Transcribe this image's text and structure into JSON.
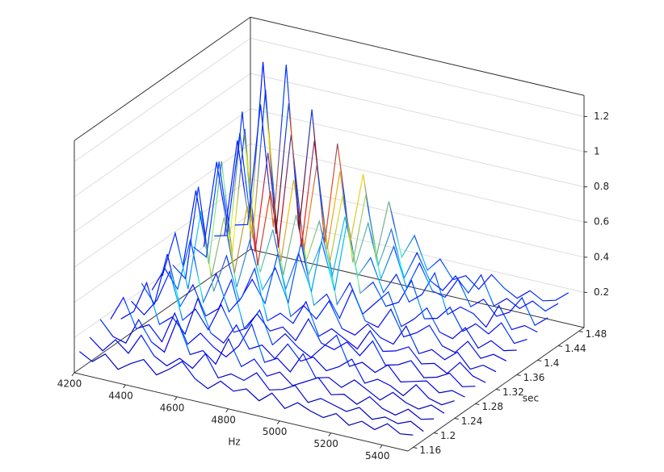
{
  "chart_data": {
    "type": "waterfall3d",
    "xlabel": "Hz",
    "ylabel": "sec",
    "xlim": [
      4200,
      5500
    ],
    "ylim": [
      1.15,
      1.49
    ],
    "zlim": [
      0,
      1.32
    ],
    "xticks": [
      4200,
      4400,
      4600,
      4800,
      5000,
      5200,
      5400
    ],
    "yticks": [
      1.16,
      1.2,
      1.24,
      1.28,
      1.32,
      1.36,
      1.4,
      1.44,
      1.48
    ],
    "zticks": [
      0.2,
      0.4,
      0.6,
      0.8,
      1,
      1.2
    ],
    "colormap": "jet",
    "clim": [
      0,
      1.2
    ],
    "grid": true,
    "x": [
      4200,
      4250,
      4300,
      4350,
      4400,
      4450,
      4500,
      4550,
      4600,
      4650,
      4700,
      4750,
      4800,
      4850,
      4900,
      4950,
      5000,
      5050,
      5100,
      5150,
      5200,
      5250,
      5300,
      5350,
      5400,
      5450,
      5500
    ],
    "series": [
      {
        "time": 1.16,
        "values": [
          0.1,
          0.06,
          0.12,
          0.05,
          0.1,
          0.14,
          0.07,
          0.12,
          0.18,
          0.1,
          0.06,
          0.12,
          0.08,
          0.11,
          0.06,
          0.12,
          0.05,
          0.1,
          0.07,
          0.05,
          0.09,
          0.04,
          0.08,
          0.05,
          0.1,
          0.06,
          0.07
        ]
      },
      {
        "time": 1.18,
        "values": [
          0.14,
          0.08,
          0.16,
          0.1,
          0.22,
          0.12,
          0.08,
          0.14,
          0.1,
          0.2,
          0.08,
          0.12,
          0.1,
          0.16,
          0.08,
          0.1,
          0.14,
          0.06,
          0.1,
          0.08,
          0.06,
          0.1,
          0.05,
          0.08,
          0.06,
          0.09,
          0.05
        ]
      },
      {
        "time": 1.2,
        "values": [
          0.2,
          0.12,
          0.1,
          0.25,
          0.14,
          0.1,
          0.3,
          0.12,
          0.16,
          0.1,
          0.26,
          0.12,
          0.18,
          0.1,
          0.14,
          0.08,
          0.12,
          0.16,
          0.08,
          0.1,
          0.06,
          0.12,
          0.07,
          0.05,
          0.1,
          0.06,
          0.08
        ]
      },
      {
        "time": 1.22,
        "values": [
          0.16,
          0.3,
          0.14,
          0.18,
          0.1,
          0.28,
          0.12,
          0.2,
          0.14,
          0.1,
          0.18,
          0.32,
          0.12,
          0.16,
          0.1,
          0.22,
          0.1,
          0.12,
          0.08,
          0.14,
          0.1,
          0.06,
          0.12,
          0.08,
          0.06,
          0.1,
          0.07
        ]
      },
      {
        "time": 1.24,
        "values": [
          0.12,
          0.18,
          0.36,
          0.14,
          0.2,
          0.12,
          0.34,
          0.16,
          0.12,
          0.24,
          0.12,
          0.16,
          0.1,
          0.2,
          0.12,
          0.16,
          0.1,
          0.14,
          0.2,
          0.08,
          0.12,
          0.1,
          0.06,
          0.14,
          0.08,
          0.06,
          0.1
        ]
      },
      {
        "time": 1.26,
        "values": [
          0.18,
          0.12,
          0.22,
          0.4,
          0.14,
          0.22,
          0.12,
          0.28,
          0.14,
          0.18,
          0.3,
          0.12,
          0.2,
          0.14,
          0.1,
          0.18,
          0.26,
          0.1,
          0.14,
          0.1,
          0.16,
          0.08,
          0.1,
          0.12,
          0.07,
          0.1,
          0.08
        ]
      },
      {
        "time": 1.28,
        "values": [
          0.24,
          0.14,
          0.44,
          0.16,
          0.3,
          0.14,
          0.2,
          0.38,
          0.12,
          0.22,
          0.14,
          0.18,
          0.12,
          0.26,
          0.14,
          0.12,
          0.18,
          0.12,
          0.22,
          0.1,
          0.12,
          0.16,
          0.08,
          0.1,
          0.14,
          0.08,
          0.1
        ]
      },
      {
        "time": 1.3,
        "values": [
          0.16,
          0.3,
          0.2,
          0.5,
          0.16,
          0.34,
          0.14,
          0.24,
          0.42,
          0.14,
          0.2,
          0.16,
          0.3,
          0.12,
          0.18,
          0.14,
          0.1,
          0.22,
          0.12,
          0.14,
          0.18,
          0.1,
          0.12,
          0.08,
          0.16,
          0.1,
          0.08
        ]
      },
      {
        "time": 1.32,
        "values": [
          0.2,
          0.46,
          0.16,
          0.62,
          0.18,
          0.4,
          0.16,
          0.3,
          0.18,
          0.48,
          0.14,
          0.22,
          0.16,
          0.28,
          0.14,
          0.12,
          0.2,
          0.14,
          0.12,
          0.24,
          0.1,
          0.14,
          0.1,
          0.16,
          0.08,
          0.12,
          0.1
        ]
      },
      {
        "time": 1.34,
        "values": [
          0.22,
          0.16,
          0.7,
          0.2,
          0.56,
          0.18,
          0.46,
          0.2,
          0.34,
          0.16,
          0.52,
          0.18,
          0.26,
          0.14,
          0.32,
          0.16,
          0.14,
          0.26,
          0.12,
          0.16,
          0.22,
          0.12,
          0.1,
          0.18,
          0.1,
          0.14,
          0.12
        ]
      },
      {
        "time": 1.36,
        "values": [
          0.18,
          0.62,
          0.22,
          0.82,
          0.2,
          0.6,
          0.24,
          0.5,
          0.18,
          0.4,
          0.2,
          0.58,
          0.16,
          0.3,
          0.14,
          0.22,
          0.3,
          0.12,
          0.18,
          0.26,
          0.14,
          0.12,
          0.2,
          0.1,
          0.16,
          0.12,
          0.14
        ]
      },
      {
        "time": 1.38,
        "values": [
          0.24,
          0.2,
          0.76,
          0.24,
          0.98,
          0.22,
          0.66,
          0.2,
          0.56,
          0.24,
          0.44,
          0.18,
          0.6,
          0.2,
          0.28,
          0.16,
          0.2,
          0.34,
          0.14,
          0.16,
          0.24,
          0.12,
          0.18,
          0.14,
          0.22,
          0.12,
          0.16
        ]
      },
      {
        "time": 1.4,
        "values": [
          0.2,
          0.7,
          0.26,
          1.02,
          0.24,
          0.82,
          0.22,
          0.7,
          0.26,
          0.5,
          0.2,
          0.56,
          0.24,
          0.36,
          0.18,
          0.3,
          0.16,
          0.22,
          0.36,
          0.14,
          0.2,
          0.18,
          0.12,
          0.26,
          0.14,
          0.18,
          0.16
        ]
      },
      {
        "time": 1.42,
        "values": [
          0.22,
          0.24,
          0.84,
          0.26,
          1.12,
          0.24,
          0.9,
          0.26,
          0.76,
          0.22,
          0.62,
          0.24,
          0.5,
          0.2,
          0.4,
          0.18,
          0.34,
          0.2,
          0.18,
          0.3,
          0.16,
          0.22,
          0.14,
          0.18,
          0.28,
          0.14,
          0.2
        ]
      },
      {
        "time": 1.44,
        "values": [
          0.18,
          0.74,
          0.24,
          1.22,
          0.26,
          1.02,
          0.22,
          0.84,
          0.24,
          0.7,
          0.2,
          0.6,
          0.22,
          0.44,
          0.18,
          0.34,
          0.2,
          0.16,
          0.26,
          0.18,
          0.3,
          0.14,
          0.2,
          0.16,
          0.22,
          0.18,
          0.24
        ]
      },
      {
        "time": 1.46,
        "values": [
          0.2,
          0.22,
          0.92,
          0.24,
          1.18,
          0.26,
          0.96,
          0.22,
          0.8,
          0.26,
          0.66,
          0.2,
          0.54,
          0.24,
          0.38,
          0.2,
          0.28,
          0.18,
          0.22,
          0.16,
          0.26,
          0.2,
          0.16,
          0.22,
          0.18,
          0.2,
          0.26
        ]
      }
    ]
  }
}
